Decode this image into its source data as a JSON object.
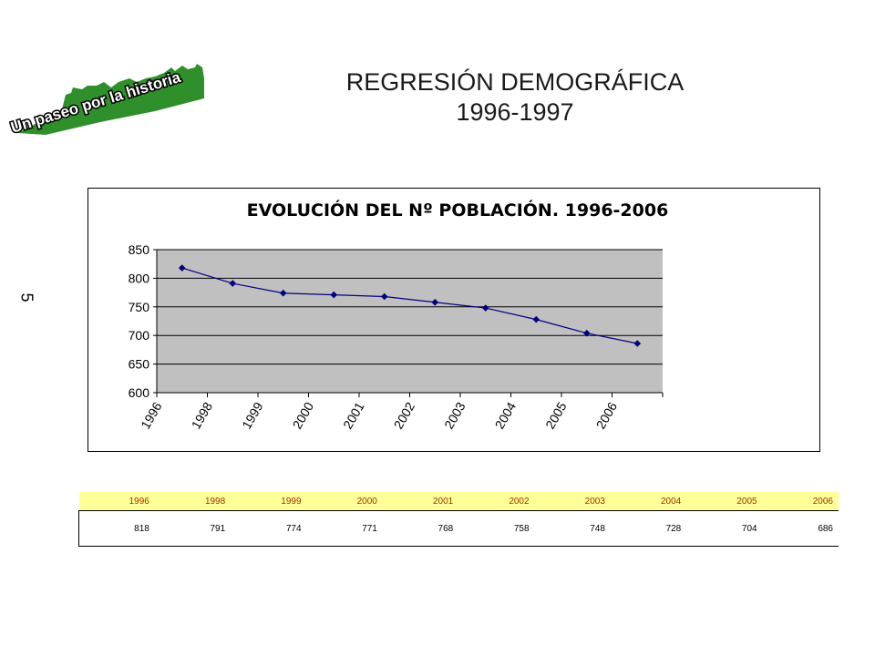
{
  "slide": {
    "title_line1": "REGRESIÓN DEMOGRÁFICA",
    "title_line2": "1996-1997",
    "side_number": "5"
  },
  "logo": {
    "text": "Un paseo por la historia",
    "icon": "town-skyline-logo",
    "color": "#2f8f2a"
  },
  "chart_data": {
    "type": "line",
    "title": "EVOLUCIÓN DEL Nº POBLACIÓN. 1996-2006",
    "x": [
      "1996",
      "1998",
      "1999",
      "2000",
      "2001",
      "2002",
      "2003",
      "2004",
      "2005",
      "2006"
    ],
    "series": [
      {
        "values": [
          818,
          791,
          774,
          771,
          768,
          758,
          748,
          728,
          704,
          686
        ],
        "color": "#00007f"
      }
    ],
    "ylim": [
      600,
      850
    ],
    "yticks": [
      600,
      650,
      700,
      750,
      800,
      850
    ],
    "grid": true,
    "plot_background": "#c0c0c0",
    "legend": "none",
    "xlabel": "",
    "ylabel": ""
  },
  "table": {
    "years": [
      "1996",
      "1998",
      "1999",
      "2000",
      "2001",
      "2002",
      "2003",
      "2004",
      "2005",
      "2006"
    ],
    "values": [
      "818",
      "791",
      "774",
      "771",
      "768",
      "758",
      "748",
      "728",
      "704",
      "686"
    ]
  }
}
